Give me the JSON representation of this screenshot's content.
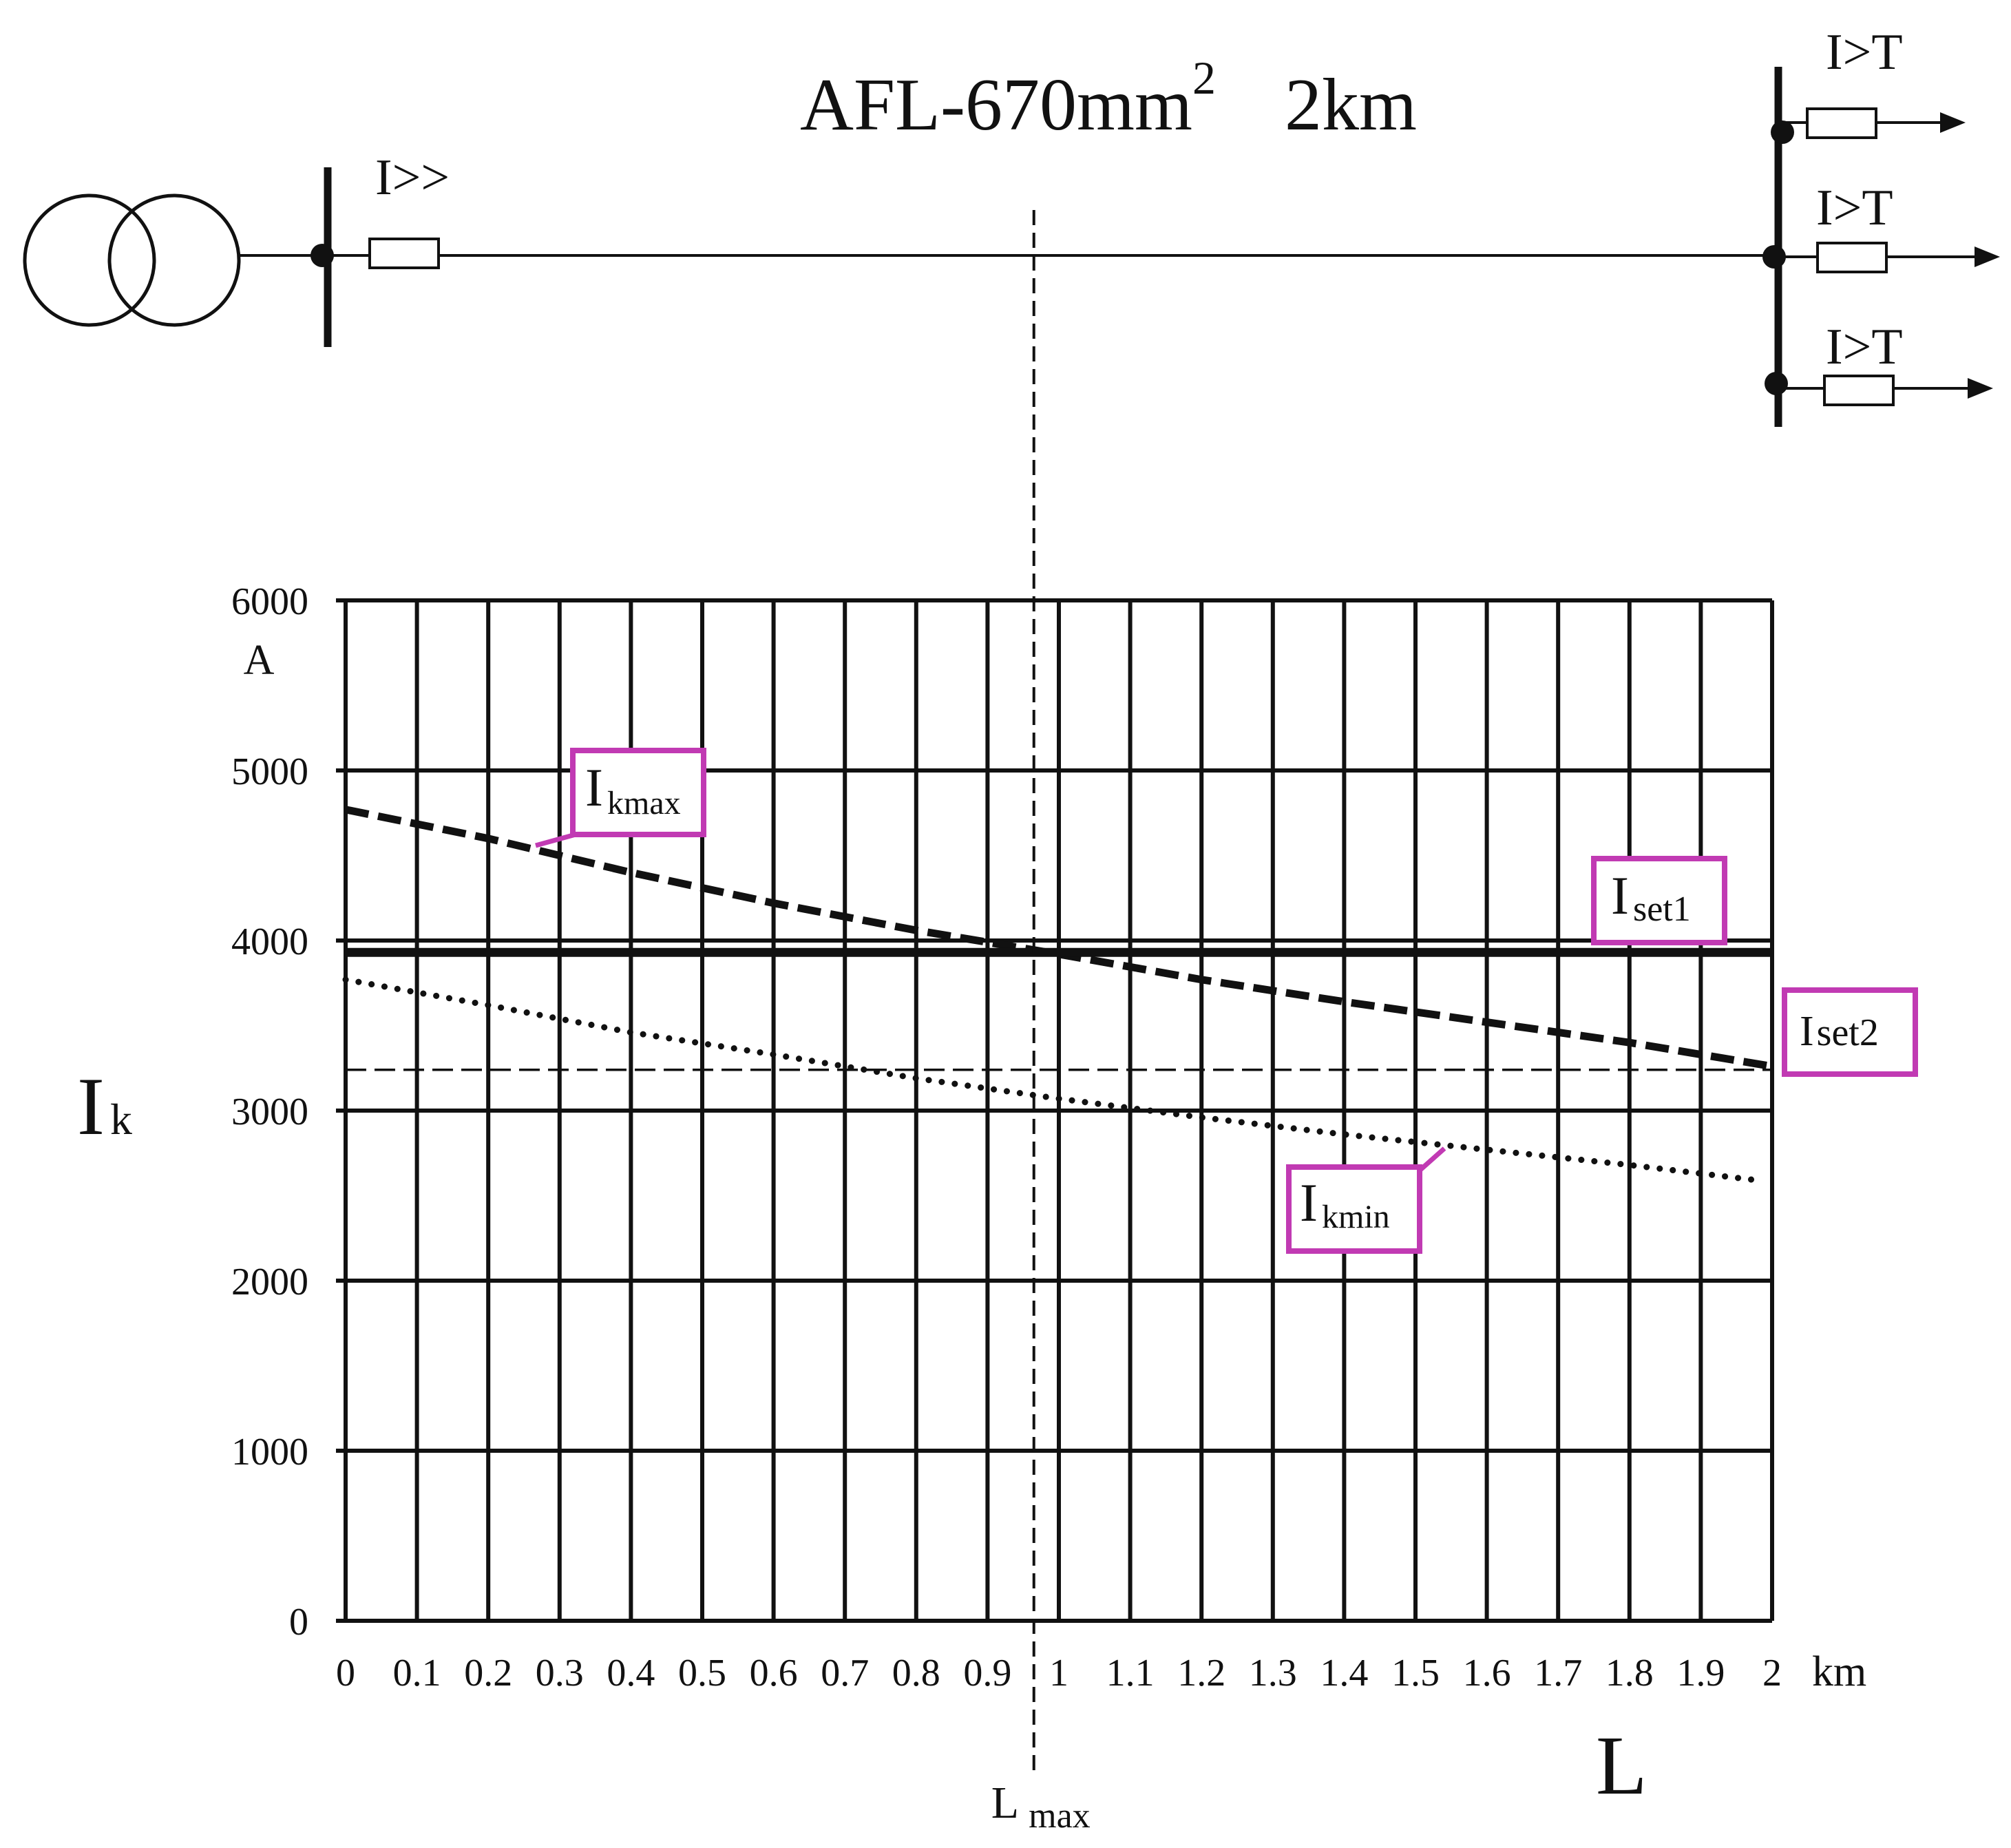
{
  "diagram": {
    "line_label": {
      "main": "AFL-670mm",
      "sup": "2",
      "length": "2km"
    },
    "relay_main": "I>>",
    "feeder_relays": [
      "I>T",
      "I>T",
      "I>T"
    ]
  },
  "chart_data": {
    "type": "line",
    "title": "",
    "xlabel": "L",
    "x_unit": "km",
    "ylabel": {
      "main": "I",
      "sub": "k"
    },
    "y_unit": "A",
    "xlim": [
      0,
      2
    ],
    "ylim": [
      0,
      6000
    ],
    "x_ticks": [
      0,
      0.1,
      0.2,
      0.3,
      0.4,
      0.5,
      0.6,
      0.7,
      0.8,
      0.9,
      1,
      1.1,
      1.2,
      1.3,
      1.4,
      1.5,
      1.6,
      1.7,
      1.8,
      1.9,
      2
    ],
    "x_tick_labels": [
      "0",
      "0.1",
      "0.2",
      "0.3",
      "0.4",
      "0.5",
      "0.6",
      "0.7",
      "0.8",
      "0.9",
      "1",
      "1.1",
      "1.2",
      "1.3",
      "1.4",
      "1.5",
      "1.6",
      "1.7",
      "1.8",
      "1.9",
      "2"
    ],
    "y_ticks": [
      0,
      1000,
      2000,
      3000,
      4000,
      5000,
      6000
    ],
    "y_tick_labels": [
      "0",
      "1000",
      "2000",
      "3000",
      "4000",
      "5000",
      "6000"
    ],
    "grid": true,
    "series": [
      {
        "name": "Ikmax",
        "label_main": "I",
        "label_sub": "kmax",
        "style": "dashed-bold",
        "x": [
          0,
          0.2,
          0.4,
          0.6,
          0.8,
          1.0,
          1.2,
          1.4,
          1.6,
          1.8,
          2.0
        ],
        "y": [
          4770,
          4600,
          4400,
          4220,
          4060,
          3920,
          3770,
          3640,
          3520,
          3400,
          3260
        ]
      },
      {
        "name": "Ikmin",
        "label_main": "I",
        "label_sub": "kmin",
        "style": "dotted",
        "x": [
          0,
          0.2,
          0.4,
          0.6,
          0.8,
          1.0,
          1.2,
          1.4,
          1.6,
          1.8,
          1.98
        ],
        "y": [
          3770,
          3620,
          3460,
          3330,
          3190,
          3070,
          2960,
          2860,
          2770,
          2680,
          2590
        ]
      },
      {
        "name": "Iset1",
        "label_main": "I",
        "label_sub": "set1",
        "style": "solid-bold",
        "y_const": 3930
      },
      {
        "name": "Iset2",
        "label_main": "I",
        "label_sub": "set2",
        "style": "dashed-thin",
        "y_const": 3240
      }
    ],
    "vertical_marker": {
      "name": "Lmax",
      "label_main": "L",
      "label_sub": "max",
      "x": 0.965
    }
  },
  "colors": {
    "line": "#111111",
    "label_box": "#c13ab3",
    "background": "#ffffff"
  }
}
